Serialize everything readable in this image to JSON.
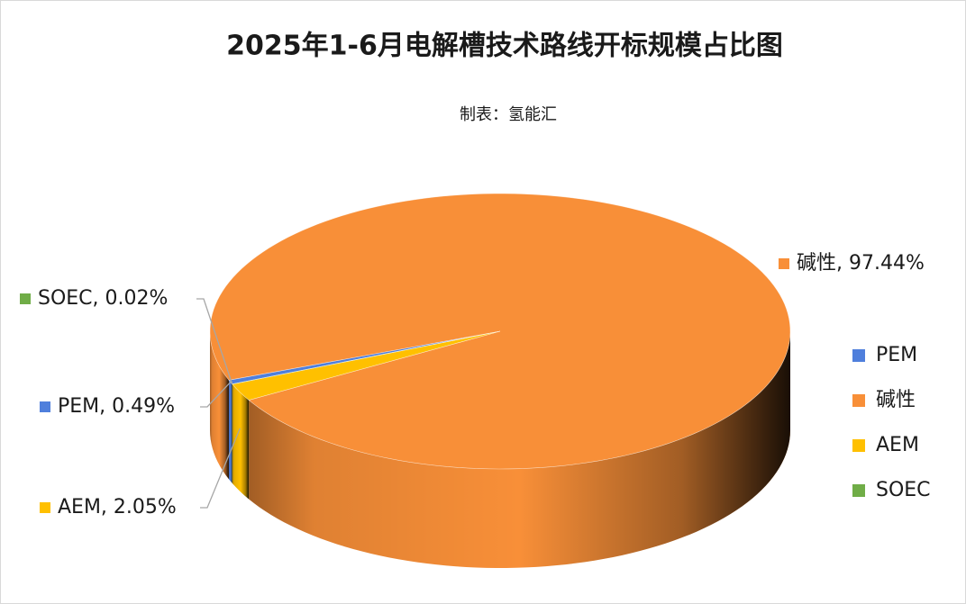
{
  "chart_data": {
    "type": "pie",
    "title": "2025年1-6月电解槽技术路线开标规模占比图",
    "subtitle": "制表：氢能汇",
    "categories": [
      "PEM",
      "碱性",
      "AEM",
      "SOEC"
    ],
    "values": [
      0.49,
      97.44,
      2.05,
      0.02
    ],
    "value_labels": [
      "PEM, 0.49%",
      "碱性, 97.44%",
      "AEM, 2.05%",
      "SOEC, 0.02%"
    ],
    "colors": [
      "#4f7fdc",
      "#f88f38",
      "#ffc000",
      "#70ad47"
    ],
    "legend": "right"
  }
}
